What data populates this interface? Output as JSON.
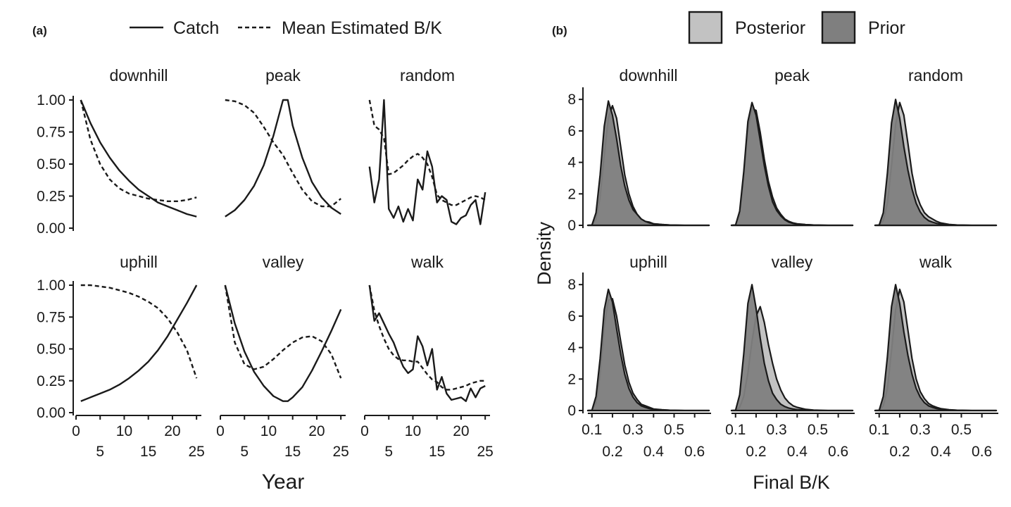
{
  "panel_a": {
    "tag": "(a)",
    "legend": [
      {
        "label": "Catch",
        "style": "solid"
      },
      {
        "label": "Mean Estimated B/K",
        "style": "dashed"
      }
    ],
    "x_title": "Year",
    "y_ticks": [
      "1.00",
      "0.75",
      "0.50",
      "0.25",
      "0.00"
    ],
    "x_ticks_top": [
      "0",
      "10",
      "20"
    ],
    "x_ticks_bottom": [
      "5",
      "15",
      "25"
    ],
    "x_ticks_bottom_other": [
      "5",
      "15",
      "25"
    ]
  },
  "panel_b": {
    "tag": "(b)",
    "legend": [
      {
        "label": "Posterior",
        "color": "#c2c2c2"
      },
      {
        "label": "Prior",
        "color": "#7f7f7f"
      }
    ],
    "x_title": "Final B/K",
    "y_title": "Density",
    "y_ticks": [
      "8",
      "6",
      "4",
      "2",
      "0"
    ],
    "x_ticks_top": [
      "0.1",
      "0.3",
      "0.5"
    ],
    "x_ticks_bottom": [
      "0.2",
      "0.4",
      "0.6"
    ]
  },
  "chart_data": [
    {
      "type": "line",
      "panel": "(a)",
      "xlabel": "Year",
      "ylabel": "",
      "xlim": [
        0,
        26
      ],
      "ylim": [
        0,
        1
      ],
      "facets": [
        {
          "name": "downhill",
          "x": [
            1,
            3,
            5,
            7,
            9,
            11,
            13,
            15,
            17,
            19,
            21,
            23,
            25
          ],
          "series": [
            {
              "name": "Catch",
              "values": [
                1.0,
                0.82,
                0.67,
                0.55,
                0.45,
                0.37,
                0.3,
                0.25,
                0.2,
                0.17,
                0.14,
                0.11,
                0.09
              ]
            },
            {
              "name": "Mean Estimated B/K",
              "values": [
                1.0,
                0.69,
                0.5,
                0.38,
                0.31,
                0.27,
                0.25,
                0.23,
                0.22,
                0.21,
                0.21,
                0.22,
                0.24
              ]
            }
          ]
        },
        {
          "name": "peak",
          "x": [
            1,
            3,
            5,
            7,
            9,
            11,
            13,
            14,
            15,
            17,
            19,
            21,
            23,
            25
          ],
          "series": [
            {
              "name": "Catch",
              "values": [
                0.09,
                0.14,
                0.22,
                0.33,
                0.49,
                0.72,
                1.0,
                1.0,
                0.8,
                0.55,
                0.36,
                0.24,
                0.16,
                0.11
              ]
            },
            {
              "name": "Mean Estimated B/K",
              "values": [
                1.0,
                0.99,
                0.96,
                0.9,
                0.79,
                0.67,
                0.57,
                0.5,
                0.43,
                0.3,
                0.21,
                0.17,
                0.17,
                0.23
              ]
            }
          ]
        },
        {
          "name": "random",
          "x": [
            1,
            2,
            3,
            4,
            5,
            6,
            7,
            8,
            9,
            10,
            11,
            12,
            13,
            14,
            15,
            16,
            17,
            18,
            19,
            20,
            21,
            22,
            23,
            24,
            25
          ],
          "series": [
            {
              "name": "Catch",
              "values": [
                0.48,
                0.2,
                0.38,
                1.0,
                0.15,
                0.08,
                0.17,
                0.05,
                0.15,
                0.06,
                0.38,
                0.3,
                0.6,
                0.48,
                0.2,
                0.25,
                0.22,
                0.05,
                0.03,
                0.08,
                0.1,
                0.18,
                0.22,
                0.03,
                0.28
              ]
            },
            {
              "name": "Mean Estimated B/K",
              "values": [
                1.0,
                0.8,
                0.77,
                0.7,
                0.42,
                0.43,
                0.46,
                0.49,
                0.53,
                0.56,
                0.58,
                0.55,
                0.5,
                0.4,
                0.26,
                0.22,
                0.2,
                0.18,
                0.18,
                0.2,
                0.22,
                0.24,
                0.25,
                0.24,
                0.22
              ]
            }
          ]
        },
        {
          "name": "uphill",
          "x": [
            1,
            3,
            5,
            7,
            9,
            11,
            13,
            15,
            17,
            19,
            21,
            23,
            25
          ],
          "series": [
            {
              "name": "Catch",
              "values": [
                0.09,
                0.12,
                0.15,
                0.18,
                0.22,
                0.27,
                0.33,
                0.4,
                0.49,
                0.6,
                0.73,
                0.86,
                1.0
              ]
            },
            {
              "name": "Mean Estimated B/K",
              "values": [
                1.0,
                1.0,
                0.99,
                0.98,
                0.96,
                0.94,
                0.91,
                0.87,
                0.82,
                0.74,
                0.63,
                0.49,
                0.27
              ]
            }
          ]
        },
        {
          "name": "valley",
          "x": [
            1,
            3,
            5,
            7,
            9,
            11,
            13,
            14,
            15,
            17,
            19,
            21,
            23,
            25
          ],
          "series": [
            {
              "name": "Catch",
              "values": [
                1.0,
                0.7,
                0.48,
                0.32,
                0.21,
                0.13,
                0.09,
                0.09,
                0.12,
                0.2,
                0.33,
                0.48,
                0.64,
                0.81
              ]
            },
            {
              "name": "Mean Estimated B/K",
              "values": [
                1.0,
                0.55,
                0.38,
                0.34,
                0.36,
                0.42,
                0.49,
                0.52,
                0.55,
                0.59,
                0.6,
                0.56,
                0.46,
                0.27
              ]
            }
          ]
        },
        {
          "name": "walk",
          "x": [
            1,
            2,
            3,
            4,
            5,
            6,
            7,
            8,
            9,
            10,
            11,
            12,
            13,
            14,
            15,
            16,
            17,
            18,
            19,
            20,
            21,
            22,
            23,
            24,
            25
          ],
          "series": [
            {
              "name": "Catch",
              "values": [
                1.0,
                0.72,
                0.78,
                0.7,
                0.62,
                0.55,
                0.45,
                0.36,
                0.31,
                0.34,
                0.6,
                0.52,
                0.37,
                0.5,
                0.18,
                0.28,
                0.15,
                0.1,
                0.11,
                0.12,
                0.09,
                0.19,
                0.12,
                0.19,
                0.21
              ]
            },
            {
              "name": "Mean Estimated B/K",
              "values": [
                1.0,
                0.8,
                0.68,
                0.58,
                0.5,
                0.45,
                0.42,
                0.41,
                0.41,
                0.4,
                0.4,
                0.35,
                0.3,
                0.26,
                0.24,
                0.2,
                0.18,
                0.18,
                0.19,
                0.2,
                0.21,
                0.23,
                0.24,
                0.25,
                0.25
              ]
            }
          ]
        }
      ]
    },
    {
      "type": "area",
      "panel": "(b)",
      "xlabel": "Final B/K",
      "ylabel": "Density",
      "xlim": [
        0.07,
        0.68
      ],
      "ylim": [
        0,
        8.5
      ],
      "x": [
        0.08,
        0.1,
        0.12,
        0.14,
        0.16,
        0.18,
        0.2,
        0.22,
        0.24,
        0.26,
        0.28,
        0.3,
        0.32,
        0.34,
        0.36,
        0.38,
        0.4,
        0.44,
        0.48,
        0.55,
        0.62,
        0.67
      ],
      "facets": [
        {
          "name": "downhill",
          "series": [
            {
              "name": "Prior",
              "values": [
                0,
                0.02,
                0.8,
                3.2,
                6.3,
                7.9,
                7.0,
                5.5,
                3.8,
                2.5,
                1.6,
                1.0,
                0.7,
                0.4,
                0.25,
                0.15,
                0.1,
                0.05,
                0.02,
                0,
                0,
                0
              ]
            },
            {
              "name": "Posterior",
              "values": [
                0,
                0.01,
                0.4,
                1.8,
                4.5,
                6.8,
                7.6,
                6.8,
                5.0,
                3.2,
                2.0,
                1.2,
                0.7,
                0.4,
                0.25,
                0.2,
                0.1,
                0.05,
                0.02,
                0,
                0,
                0
              ]
            }
          ]
        },
        {
          "name": "peak",
          "series": [
            {
              "name": "Prior",
              "values": [
                0,
                0.02,
                0.9,
                3.4,
                6.6,
                7.8,
                7.0,
                5.4,
                3.8,
                2.5,
                1.5,
                0.95,
                0.6,
                0.35,
                0.2,
                0.12,
                0.08,
                0.04,
                0.02,
                0,
                0,
                0
              ]
            },
            {
              "name": "Posterior",
              "values": [
                0,
                0.02,
                0.7,
                3.0,
                6.1,
                7.4,
                7.3,
                5.9,
                4.2,
                2.8,
                1.8,
                1.1,
                0.7,
                0.4,
                0.25,
                0.15,
                0.1,
                0.05,
                0.02,
                0,
                0,
                0
              ]
            }
          ]
        },
        {
          "name": "random",
          "series": [
            {
              "name": "Prior",
              "values": [
                0,
                0.02,
                0.8,
                3.3,
                6.5,
                8.0,
                6.8,
                5.0,
                3.5,
                2.3,
                1.4,
                0.85,
                0.5,
                0.3,
                0.2,
                0.12,
                0.08,
                0.04,
                0.02,
                0,
                0,
                0
              ]
            },
            {
              "name": "Posterior",
              "values": [
                0,
                0.01,
                0.3,
                1.4,
                3.8,
                6.4,
                7.8,
                7.0,
                5.2,
                3.3,
                2.0,
                1.3,
                0.8,
                0.55,
                0.4,
                0.25,
                0.15,
                0.06,
                0.02,
                0,
                0,
                0
              ]
            }
          ]
        },
        {
          "name": "uphill",
          "series": [
            {
              "name": "Prior",
              "values": [
                0,
                0.02,
                0.9,
                3.3,
                6.4,
                7.7,
                6.9,
                5.2,
                3.6,
                2.3,
                1.4,
                0.85,
                0.5,
                0.3,
                0.2,
                0.12,
                0.08,
                0.04,
                0.02,
                0,
                0,
                0
              ]
            },
            {
              "name": "Posterior",
              "values": [
                0,
                0.01,
                0.5,
                2.3,
                5.4,
                7.0,
                7.1,
                6.0,
                4.4,
                2.9,
                1.8,
                1.1,
                0.7,
                0.4,
                0.3,
                0.2,
                0.1,
                0.05,
                0.02,
                0,
                0,
                0
              ]
            }
          ]
        },
        {
          "name": "valley",
          "series": [
            {
              "name": "Prior",
              "values": [
                0,
                0.02,
                1.0,
                3.6,
                6.8,
                8.0,
                6.5,
                4.6,
                3.0,
                1.9,
                1.1,
                0.7,
                0.4,
                0.25,
                0.15,
                0.1,
                0.06,
                0.03,
                0.01,
                0,
                0,
                0
              ]
            },
            {
              "name": "Posterior",
              "values": [
                0,
                0.01,
                0.2,
                0.9,
                2.4,
                4.4,
                6.0,
                6.6,
                5.6,
                4.2,
                3.0,
                2.0,
                1.3,
                0.8,
                0.5,
                0.3,
                0.2,
                0.08,
                0.03,
                0,
                0,
                0
              ]
            }
          ]
        },
        {
          "name": "walk",
          "series": [
            {
              "name": "Prior",
              "values": [
                0,
                0.02,
                0.9,
                3.4,
                6.6,
                8.0,
                6.8,
                5.0,
                3.5,
                2.3,
                1.4,
                0.85,
                0.5,
                0.3,
                0.2,
                0.12,
                0.08,
                0.04,
                0.02,
                0,
                0,
                0
              ]
            },
            {
              "name": "Posterior",
              "values": [
                0,
                0.01,
                0.3,
                1.4,
                3.8,
                6.4,
                7.7,
                6.9,
                5.1,
                3.3,
                2.0,
                1.2,
                0.75,
                0.45,
                0.3,
                0.2,
                0.12,
                0.05,
                0.02,
                0,
                0,
                0
              ]
            }
          ]
        }
      ]
    }
  ]
}
